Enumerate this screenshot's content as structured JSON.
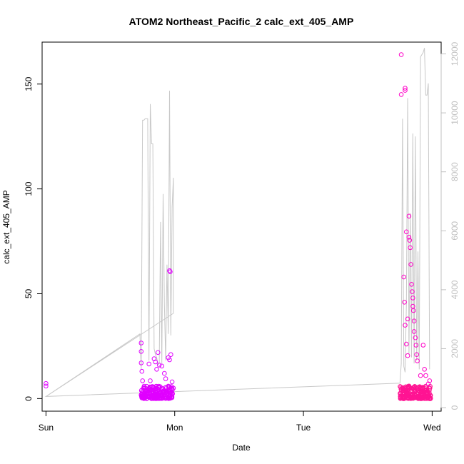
{
  "chart_data": {
    "type": "scatter",
    "title": "ATOM2 Northeast_Pacific_2 calc_ext_405_AMP",
    "xlabel": "Date",
    "ylabel": "calc_ext_405_AMP",
    "x_ticks": [
      "Sun",
      "Mon",
      "Tue",
      "Wed"
    ],
    "xlim_days": [
      -0.03,
      3.07
    ],
    "ylim": [
      -6,
      170
    ],
    "y_ticks": [
      0,
      50,
      100,
      150
    ],
    "y2lim": [
      -120,
      12400
    ],
    "y2_ticks": [
      0,
      2000,
      4000,
      6000,
      8000,
      10000,
      12000
    ],
    "grid": false,
    "legend": "none",
    "colors": {
      "points_series_1": "#e000ff",
      "points_series_2": "#ff1493",
      "points_outline_mix": "#ff00c8",
      "line_secondary": "#c8c8c8"
    },
    "series": [
      {
        "kind": "points",
        "axis": "left",
        "points": [
          [
            0.0,
            7.2
          ],
          [
            0.0,
            6.0
          ],
          [
            0.74,
            26.5
          ],
          [
            0.74,
            22.5
          ],
          [
            0.74,
            17.0
          ],
          [
            0.745,
            13.0
          ],
          [
            0.75,
            8.5
          ],
          [
            0.8,
            16.5
          ],
          [
            0.81,
            8.5
          ],
          [
            0.84,
            19.0
          ],
          [
            0.85,
            17.5
          ],
          [
            0.86,
            14.0
          ],
          [
            0.87,
            22.0
          ],
          [
            0.88,
            16.0
          ],
          [
            0.9,
            15.5
          ],
          [
            0.92,
            12.0
          ],
          [
            0.93,
            9.5
          ],
          [
            0.95,
            19.5
          ],
          [
            0.96,
            18.5
          ],
          [
            0.96,
            61.0
          ],
          [
            0.965,
            60.5
          ],
          [
            0.97,
            21.0
          ],
          [
            0.98,
            8.0
          ],
          [
            0.99,
            5.0
          ]
        ]
      },
      {
        "kind": "points",
        "axis": "left",
        "points": [
          [
            2.76,
            164.0
          ],
          [
            2.76,
            145.0
          ],
          [
            2.79,
            148.0
          ],
          [
            2.79,
            147.0
          ],
          [
            2.8,
            79.5
          ],
          [
            2.82,
            87.0
          ],
          [
            2.82,
            77.0
          ],
          [
            2.825,
            75.5
          ],
          [
            2.83,
            72.0
          ],
          [
            2.835,
            64.0
          ],
          [
            2.84,
            54.5
          ],
          [
            2.845,
            51.0
          ],
          [
            2.85,
            48.0
          ],
          [
            2.85,
            44.0
          ],
          [
            2.855,
            42.0
          ],
          [
            2.86,
            37.0
          ],
          [
            2.86,
            32.0
          ],
          [
            2.87,
            29.0
          ],
          [
            2.875,
            25.5
          ],
          [
            2.88,
            21.0
          ],
          [
            2.885,
            18.0
          ],
          [
            2.78,
            58.0
          ],
          [
            2.785,
            46.0
          ],
          [
            2.81,
            38.0
          ],
          [
            2.79,
            35.0
          ],
          [
            2.8,
            26.0
          ],
          [
            2.81,
            20.5
          ],
          [
            2.93,
            25.5
          ],
          [
            2.94,
            14.0
          ],
          [
            2.91,
            11.0
          ],
          [
            2.95,
            11.0
          ],
          [
            2.98,
            8.5
          ],
          [
            2.97,
            7.0
          ]
        ]
      },
      {
        "kind": "line",
        "axis": "right",
        "points": [
          [
            0.0,
            380
          ],
          [
            0.99,
            3200
          ],
          [
            0.99,
            7800
          ],
          [
            0.98,
            6800
          ],
          [
            0.97,
            2450
          ],
          [
            0.96,
            10750
          ],
          [
            0.95,
            2500
          ],
          [
            0.94,
            4850
          ],
          [
            0.93,
            1600
          ],
          [
            0.92,
            3500
          ],
          [
            0.91,
            7250
          ],
          [
            0.9,
            1500
          ],
          [
            0.89,
            6300
          ],
          [
            0.88,
            1500
          ],
          [
            0.87,
            1450
          ],
          [
            0.86,
            1700
          ],
          [
            0.85,
            1800
          ],
          [
            0.84,
            2000
          ],
          [
            0.83,
            8950
          ],
          [
            0.82,
            8950
          ],
          [
            0.81,
            10300
          ],
          [
            0.8,
            1600
          ],
          [
            0.79,
            9800
          ],
          [
            0.78,
            9800
          ],
          [
            0.77,
            9800
          ],
          [
            0.76,
            9750
          ],
          [
            0.75,
            9750
          ],
          [
            0.74,
            1300
          ],
          [
            0.73,
            2500
          ],
          [
            0.0,
            380
          ],
          [
            2.75,
            830
          ],
          [
            2.76,
            1500
          ],
          [
            2.77,
            9800
          ],
          [
            2.78,
            1400
          ],
          [
            2.79,
            1200
          ],
          [
            2.8,
            3500
          ],
          [
            2.81,
            10500
          ],
          [
            2.82,
            1800
          ],
          [
            2.83,
            6600
          ],
          [
            2.84,
            1700
          ],
          [
            2.85,
            9300
          ],
          [
            2.86,
            1500
          ],
          [
            2.87,
            9200
          ],
          [
            2.88,
            1600
          ],
          [
            2.89,
            5300
          ],
          [
            2.9,
            1300
          ],
          [
            2.91,
            11900
          ],
          [
            2.93,
            12050
          ],
          [
            2.94,
            12200
          ],
          [
            2.95,
            10600
          ],
          [
            2.96,
            10600
          ],
          [
            2.97,
            11000
          ],
          [
            2.98,
            1300
          ]
        ]
      }
    ],
    "dense_bands": [
      {
        "x_from": 0.74,
        "x_to": 0.99,
        "y_from": 0,
        "y_to": 6,
        "color": "#e000ff"
      },
      {
        "x_from": 2.75,
        "x_to": 2.99,
        "y_from": 0,
        "y_to": 6,
        "color": "#ff1493"
      }
    ]
  }
}
